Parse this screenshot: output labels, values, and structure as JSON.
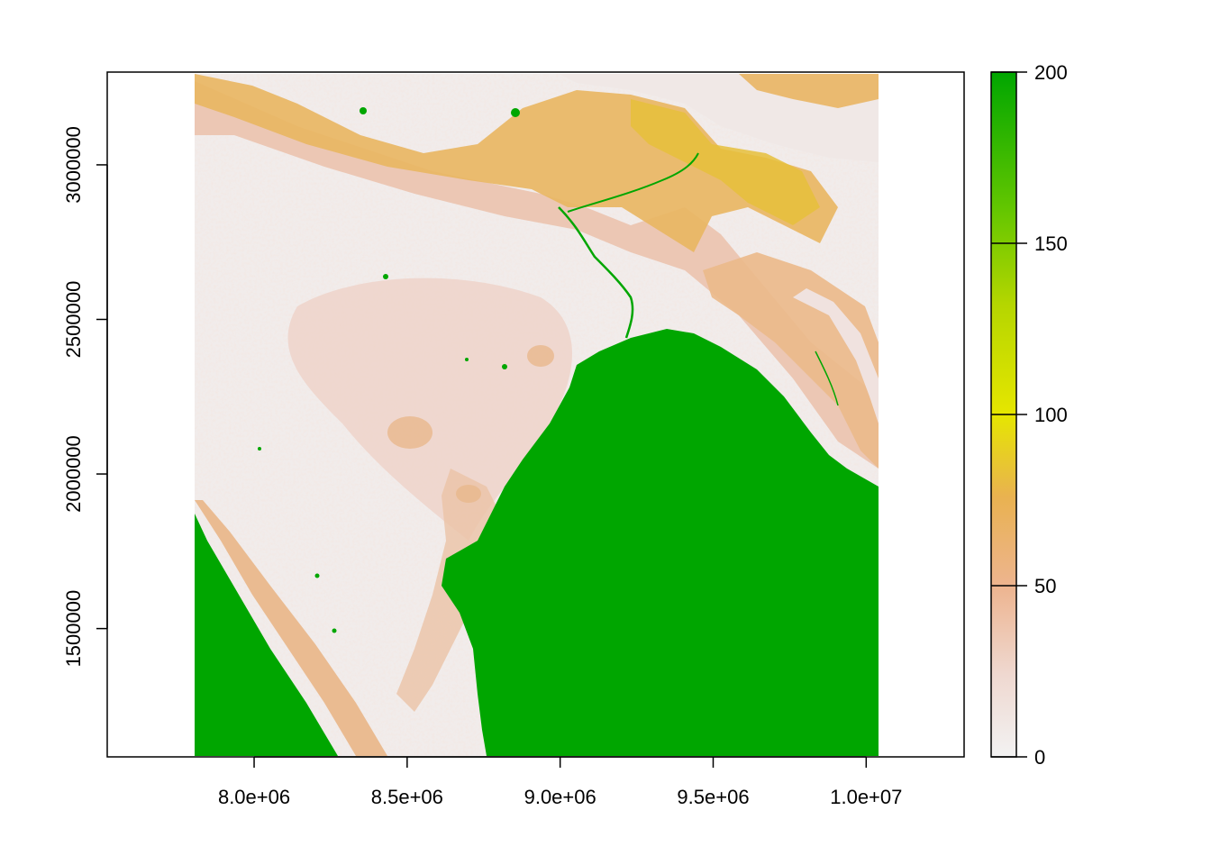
{
  "chart_data": {
    "type": "heatmap",
    "title": "",
    "xlabel": "",
    "ylabel": "",
    "x_range": [
      7520000,
      10320000
    ],
    "y_range": [
      1085000,
      3300000
    ],
    "raster_extent": {
      "xmin": 7800000,
      "xmax": 10030000,
      "ymin": 1085000,
      "ymax": 3300000
    },
    "x_ticks": [
      {
        "value": 8000000,
        "label": "8.0e+06"
      },
      {
        "value": 8500000,
        "label": "8.5e+06"
      },
      {
        "value": 9000000,
        "label": "9.0e+06"
      },
      {
        "value": 9500000,
        "label": "9.5e+06"
      },
      {
        "value": 10000000,
        "label": "1.0e+07"
      }
    ],
    "y_ticks": [
      {
        "value": 1500000,
        "label": "1500000"
      },
      {
        "value": 2000000,
        "label": "2000000"
      },
      {
        "value": 2500000,
        "label": "2500000"
      },
      {
        "value": 3000000,
        "label": "3000000"
      }
    ],
    "legend": {
      "placement": "right",
      "range": [
        0,
        200
      ],
      "ticks": [
        {
          "value": 0,
          "label": "0"
        },
        {
          "value": 50,
          "label": "50"
        },
        {
          "value": 100,
          "label": "100"
        },
        {
          "value": 150,
          "label": "150"
        },
        {
          "value": 200,
          "label": "200"
        }
      ],
      "colors": [
        "#F2F2F2",
        "#EFC2B3",
        "#ECB176",
        "#E6C03B",
        "#E6E600",
        "#63C600",
        "#00A600"
      ]
    },
    "grid": false
  }
}
